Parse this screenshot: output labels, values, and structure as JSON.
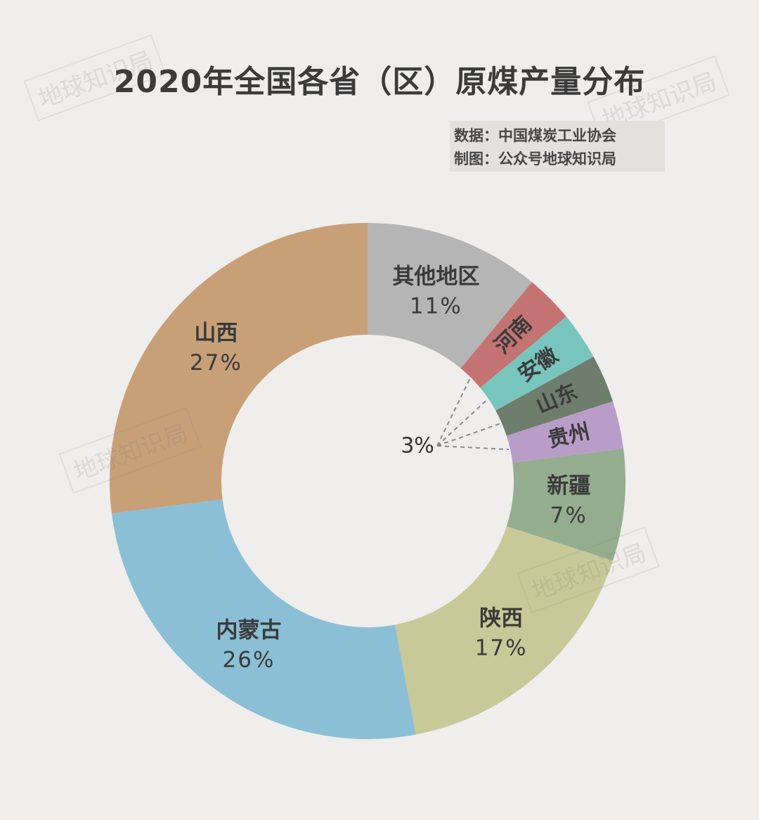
{
  "watermark_text": "地球知识局",
  "header": {
    "title": "2020年全国各省（区）原煤产量分布",
    "source": "数据：中国煤炭工业协会",
    "credit": "制图：公众号地球知识局"
  },
  "chart_data": {
    "type": "pie",
    "donut": true,
    "title": "2020年全国各省（区）原煤产量分布",
    "legend": "none",
    "start_angle_deg": 0,
    "direction": "clockwise",
    "slices": [
      {
        "label": "其他地区",
        "value": 11,
        "value_label": "11%",
        "color": "#b5b5b5"
      },
      {
        "label": "河南",
        "value": 3,
        "value_label": "",
        "color": "#c47373"
      },
      {
        "label": "安徽",
        "value": 3,
        "value_label": "",
        "color": "#78c5bd"
      },
      {
        "label": "山东",
        "value": 3,
        "value_label": "",
        "color": "#6e7d6c"
      },
      {
        "label": "贵州",
        "value": 3,
        "value_label": "",
        "color": "#b99dc9"
      },
      {
        "label": "新疆",
        "value": 7,
        "value_label": "7%",
        "color": "#95ad8f"
      },
      {
        "label": "陕西",
        "value": 17,
        "value_label": "17%",
        "color": "#c8c998"
      },
      {
        "label": "内蒙古",
        "value": 26,
        "value_label": "26%",
        "color": "#8bbfd6"
      },
      {
        "label": "山西",
        "value": 27,
        "value_label": "27%",
        "color": "#c8a078"
      }
    ],
    "annotations": [
      {
        "text": "3%",
        "refers_to": [
          "河南",
          "安徽",
          "山东",
          "贵州"
        ]
      }
    ]
  }
}
